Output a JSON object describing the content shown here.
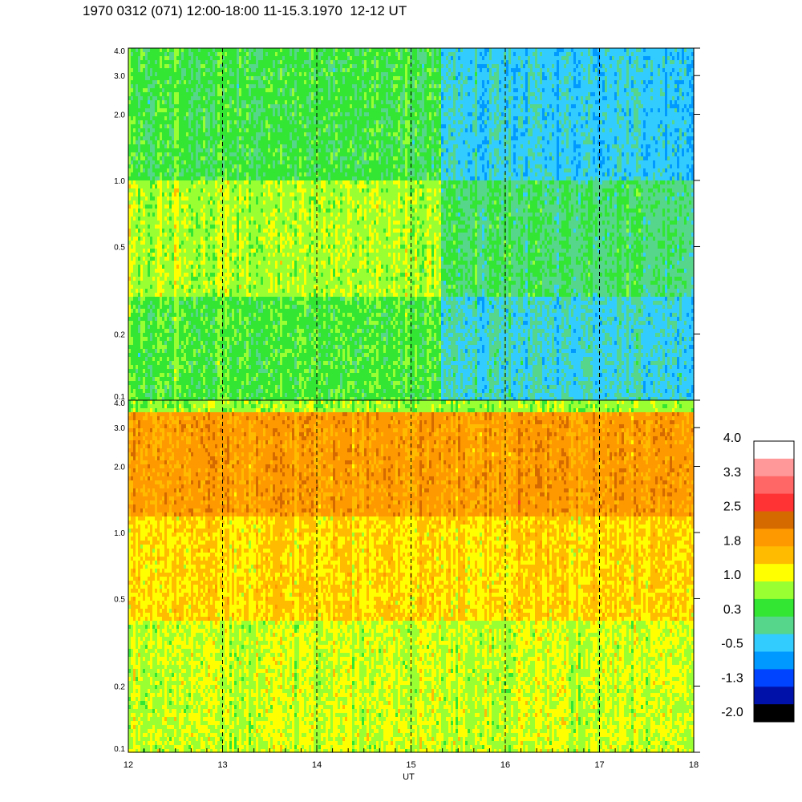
{
  "title": "1970 0312 (071) 12:00-18:00 11-15.3.1970  12-12 UT",
  "chart_data": [
    {
      "type": "heatmap",
      "panel": "top",
      "x_range": [
        12,
        18
      ],
      "y_scale": "log",
      "y_range": [
        0.1,
        4.0
      ],
      "y_tick_labels": [
        "4.0",
        "3.0",
        "2.0",
        "1.0",
        "0.5",
        "0.2",
        "0.1"
      ],
      "dashed_hour_markers": [
        13,
        14,
        15,
        16,
        17
      ],
      "color_profile": [
        {
          "from": 0.1,
          "to": 0.3,
          "dominant_value": 0.3
        },
        {
          "from": 0.3,
          "to": 1.0,
          "dominant_value": 0.7
        },
        {
          "from": 1.0,
          "to": 4.0,
          "dominant_value": 0.2
        }
      ],
      "time_variation": [
        {
          "from": 12,
          "to": 15.3,
          "shift": 0.2
        },
        {
          "from": 15.3,
          "to": 18,
          "shift": -0.5
        }
      ]
    },
    {
      "type": "heatmap",
      "panel": "bottom",
      "x_range": [
        12,
        18
      ],
      "y_scale": "log",
      "y_range": [
        0.1,
        4.0
      ],
      "y_tick_labels": [
        "4.0",
        "3.0",
        "2.0",
        "1.0",
        "0.5",
        "0.2",
        "0.1"
      ],
      "x_tick_labels": [
        "12",
        "13",
        "14",
        "15",
        "16",
        "17",
        "18"
      ],
      "xlabel": "UT",
      "dashed_hour_markers": [
        13,
        14,
        15,
        16,
        17
      ],
      "color_profile": [
        {
          "from": 0.1,
          "to": 0.4,
          "dominant_value": 1.0
        },
        {
          "from": 0.4,
          "to": 1.2,
          "dominant_value": 1.4
        },
        {
          "from": 1.2,
          "to": 3.5,
          "dominant_value": 1.9
        },
        {
          "from": 3.5,
          "to": 4.0,
          "dominant_value": 0.8
        }
      ]
    }
  ],
  "colorbar": {
    "labels": [
      "4.0",
      "3.3",
      "2.5",
      "1.8",
      "1.0",
      "0.3",
      "-0.5",
      "-1.3",
      "-2.0"
    ],
    "colors": [
      "#ffffff",
      "#ff9999",
      "#ff6666",
      "#ff3333",
      "#d46a00",
      "#ff9900",
      "#ffbb00",
      "#ffff00",
      "#99ff33",
      "#33e633",
      "#55d68a",
      "#33ccff",
      "#0099ff",
      "#0044ff",
      "#0011aa",
      "#000000"
    ]
  }
}
